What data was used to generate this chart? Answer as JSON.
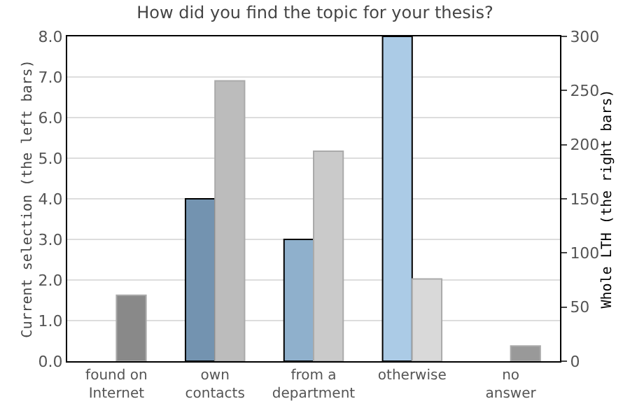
{
  "chart_data": {
    "type": "bar",
    "title": "How did you find the topic for your thesis?",
    "categories": [
      "found on\nInternet",
      "own\ncontacts",
      "from a\ndepartment",
      "otherwise",
      "no\nanswer"
    ],
    "ylabel": "Current selection (the left bars)",
    "y2label": "Whole LTH (the right bars)",
    "series": [
      {
        "values": [
          null,
          4,
          3,
          8,
          null
        ],
        "colors": [
          "#7393b0",
          "#7393b0",
          "#8fb0cc",
          "#abcbe6",
          "#abcbe6"
        ]
      },
      {
        "values": [
          61,
          259,
          194,
          76,
          14
        ],
        "colors": [
          "#898989",
          "#bcbcbc",
          "#cacaca",
          "#d9d9d9",
          "#999999"
        ],
        "axis": "y2"
      }
    ],
    "ylim": [
      0,
      8
    ],
    "yticks": [
      {
        "value": 0,
        "label": "0.0"
      },
      {
        "value": 1,
        "label": "1.0"
      },
      {
        "value": 2,
        "label": "2.0"
      },
      {
        "value": 3,
        "label": "3.0"
      },
      {
        "value": 4,
        "label": "4.0"
      },
      {
        "value": 5,
        "label": "5.0"
      },
      {
        "value": 6,
        "label": "6.0"
      },
      {
        "value": 7,
        "label": "7.0"
      },
      {
        "value": 8,
        "label": "8.0"
      }
    ],
    "y2lim": [
      0,
      300
    ],
    "y2ticks": [
      0,
      50,
      100,
      150,
      200,
      250,
      300
    ],
    "grid": "y"
  }
}
